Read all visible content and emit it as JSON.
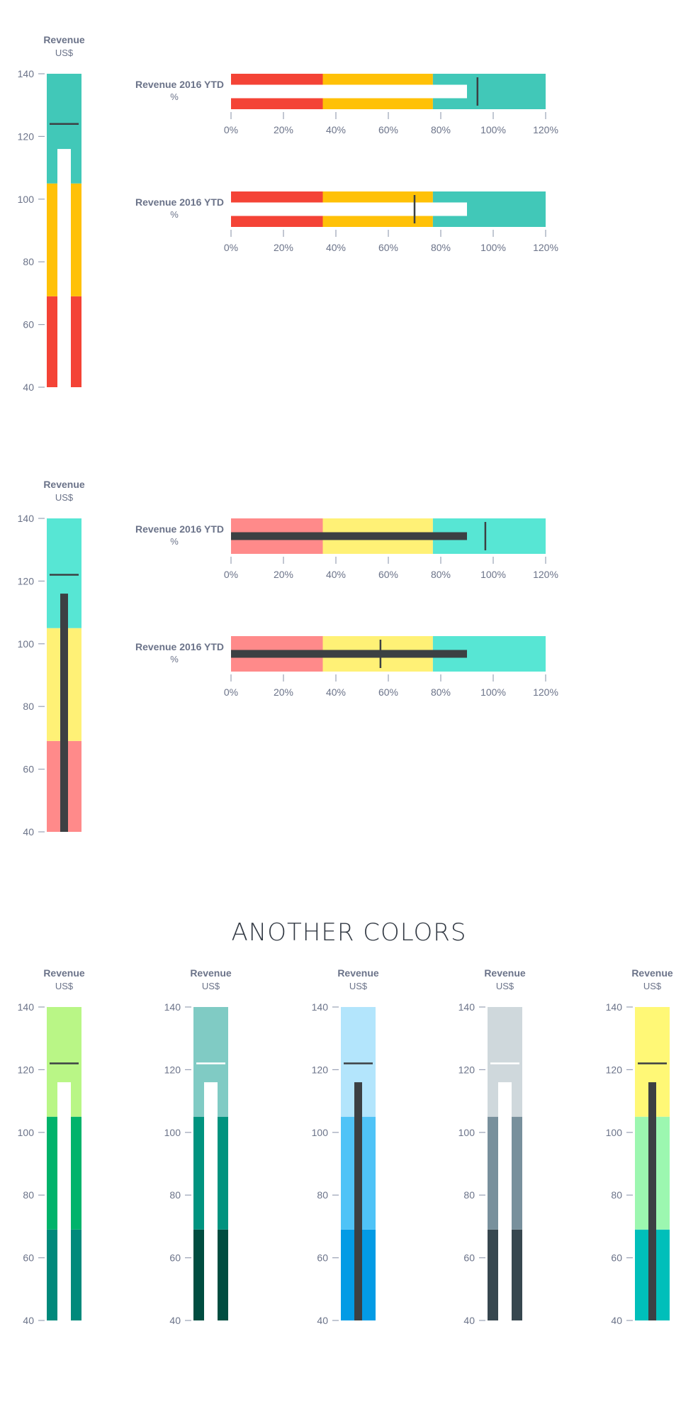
{
  "theme": {
    "text_color": "#6b7389",
    "tick_color": "#9aa2b5",
    "marker_dark": "#3c4043",
    "marker_light": "#ffffff",
    "bar_dark": "#3c4043",
    "bar_light": "#ffffff"
  },
  "palettes": {
    "warm": [
      "#f44336",
      "#ffc107",
      "#41c8b8"
    ],
    "pastel": [
      "#ff8a8a",
      "#fff176",
      "#57e6d4"
    ],
    "green": [
      "#00897b",
      "#00b36b",
      "#b9f686"
    ],
    "teal": [
      "#004d40",
      "#00937f",
      "#80cbc4"
    ],
    "blue": [
      "#039be5",
      "#4fc3f7",
      "#b3e5fc"
    ],
    "gray": [
      "#37474f",
      "#78909c",
      "#cfd8dc"
    ],
    "yellow": [
      "#00bfba",
      "#9cf7b0",
      "#fff876"
    ]
  },
  "section_heading": "ANOTHER COLORS",
  "chart_data": [
    {
      "type": "vertical-bullet",
      "title": "Revenue",
      "subtitle": "US$",
      "ticks": [
        40,
        60,
        80,
        100,
        120,
        140
      ],
      "ylim": [
        40,
        140
      ],
      "ranges": [
        40,
        69,
        105,
        140
      ],
      "palette": "warm",
      "value": 116,
      "target": 124,
      "bar": "light"
    },
    {
      "type": "horizontal-bullet",
      "title": "Revenue 2016 YTD",
      "subtitle": "%",
      "ticks": [
        "0%",
        "20%",
        "40%",
        "60%",
        "80%",
        "100%",
        "120%"
      ],
      "xlim": [
        0,
        120
      ],
      "ranges": [
        0,
        35,
        77,
        120
      ],
      "palette": "warm",
      "value": 90,
      "target": 94,
      "bar": "light"
    },
    {
      "type": "horizontal-bullet",
      "title": "Revenue 2016 YTD",
      "subtitle": "%",
      "ticks": [
        "0%",
        "20%",
        "40%",
        "60%",
        "80%",
        "100%",
        "120%"
      ],
      "xlim": [
        0,
        120
      ],
      "ranges": [
        0,
        35,
        77,
        120
      ],
      "palette": "warm",
      "value": 90,
      "target": 70,
      "bar": "light"
    },
    {
      "type": "vertical-bullet",
      "title": "Revenue",
      "subtitle": "US$",
      "ticks": [
        40,
        60,
        80,
        100,
        120,
        140
      ],
      "ylim": [
        40,
        140
      ],
      "ranges": [
        40,
        69,
        105,
        140
      ],
      "palette": "pastel",
      "value": 116,
      "target": 122,
      "bar": "dark"
    },
    {
      "type": "horizontal-bullet",
      "title": "Revenue 2016 YTD",
      "subtitle": "%",
      "ticks": [
        "0%",
        "20%",
        "40%",
        "60%",
        "80%",
        "100%",
        "120%"
      ],
      "xlim": [
        0,
        120
      ],
      "ranges": [
        0,
        35,
        77,
        120
      ],
      "palette": "pastel",
      "value": 90,
      "target": 97,
      "bar": "dark"
    },
    {
      "type": "horizontal-bullet",
      "title": "Revenue 2016 YTD",
      "subtitle": "%",
      "ticks": [
        "0%",
        "20%",
        "40%",
        "60%",
        "80%",
        "100%",
        "120%"
      ],
      "xlim": [
        0,
        120
      ],
      "ranges": [
        0,
        35,
        77,
        120
      ],
      "palette": "pastel",
      "value": 90,
      "target": 57,
      "bar": "dark"
    },
    {
      "type": "vertical-bullet",
      "title": "Revenue",
      "subtitle": "US$",
      "ticks": [
        40,
        60,
        80,
        100,
        120,
        140
      ],
      "ylim": [
        40,
        140
      ],
      "ranges": [
        40,
        69,
        105,
        140
      ],
      "palette": "green",
      "value": 116,
      "target": 122,
      "bar": "light"
    },
    {
      "type": "vertical-bullet",
      "title": "Revenue",
      "subtitle": "US$",
      "ticks": [
        40,
        60,
        80,
        100,
        120,
        140
      ],
      "ylim": [
        40,
        140
      ],
      "ranges": [
        40,
        69,
        105,
        140
      ],
      "palette": "teal",
      "value": 116,
      "target": 122,
      "bar": "light"
    },
    {
      "type": "vertical-bullet",
      "title": "Revenue",
      "subtitle": "US$",
      "ticks": [
        40,
        60,
        80,
        100,
        120,
        140
      ],
      "ylim": [
        40,
        140
      ],
      "ranges": [
        40,
        69,
        105,
        140
      ],
      "palette": "blue",
      "value": 116,
      "target": 122,
      "bar": "dark"
    },
    {
      "type": "vertical-bullet",
      "title": "Revenue",
      "subtitle": "US$",
      "ticks": [
        40,
        60,
        80,
        100,
        120,
        140
      ],
      "ylim": [
        40,
        140
      ],
      "ranges": [
        40,
        69,
        105,
        140
      ],
      "palette": "gray",
      "value": 116,
      "target": 122,
      "bar": "light"
    },
    {
      "type": "vertical-bullet",
      "title": "Revenue",
      "subtitle": "US$",
      "ticks": [
        40,
        60,
        80,
        100,
        120,
        140
      ],
      "ylim": [
        40,
        140
      ],
      "ranges": [
        40,
        69,
        105,
        140
      ],
      "palette": "yellow",
      "value": 116,
      "target": 122,
      "bar": "dark"
    }
  ]
}
